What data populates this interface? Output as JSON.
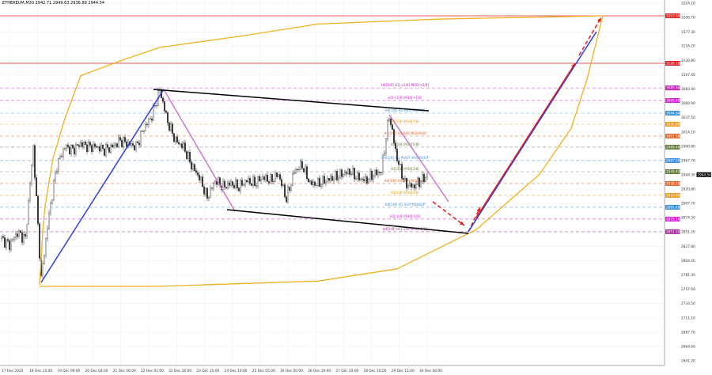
{
  "chart_data": {
    "type": "candlestick",
    "title": "ETHEREUM,M30  2942.71 2949.63 2936.89 2944.54",
    "symbol_line": {
      "symbol": "ETHEREUM,M30",
      "open": "2942.71",
      "high": "2949.63",
      "low": "2936.89",
      "close": "2944.54"
    },
    "ylim": [
      2641.2,
      3224.1
    ],
    "grid": true,
    "y_ticks": [
      "3224.10",
      "3200.70",
      "3177.30",
      "3154.20",
      "3130.80",
      "3107.40",
      "3083.90",
      "3060.90",
      "3037.50",
      "3014.10",
      "2990.80",
      "2967.70",
      "2944.30",
      "2920.80",
      "2897.70",
      "2874.30",
      "2851.20",
      "2827.80",
      "2804.40",
      "2781.30",
      "2757.60",
      "2734.50",
      "2711.10",
      "2687.70",
      "2664.60",
      "2641.20"
    ],
    "x_ticks": [
      "17 Dec 2025",
      "18 Dec 14:00",
      "19 Dec 09:00",
      "20 Dec 04:00",
      "21 Dec 06:00",
      "22 Dec 01:00",
      "22 Dec 20:00",
      "23 Dec 15:00",
      "24 Dec 10:00",
      "25 Dec 05:00",
      "26 Dec 00:00",
      "26 Dec 19:00",
      "27 Dec 20:00",
      "28 Dec 16:00",
      "29 Dec 11:00",
      "30 Dec 06:00"
    ],
    "price_samples": [
      2840,
      2830,
      2850,
      2840,
      2990,
      2775,
      2880,
      2960,
      2990,
      2985,
      2995,
      2990,
      2990,
      2985,
      2990,
      3000,
      2995,
      2990,
      3020,
      3040,
      3083,
      3030,
      3000,
      2990,
      2960,
      2940,
      2907,
      2935,
      2925,
      2930,
      2925,
      2935,
      2930,
      2940,
      2935,
      2945,
      2905,
      2950,
      2960,
      2930,
      2930,
      2935,
      2940,
      2945,
      2950,
      2940,
      2935,
      2945,
      2950,
      3042,
      2970,
      2930,
      2925,
      2935,
      2944.54
    ],
    "current_price": "2944.54",
    "levels": [
      {
        "price": "3085.94",
        "label": "H4[8/8] H1[+2/8] M30[+2/8]",
        "color": "#c21fb5"
      },
      {
        "price": "3065.40",
        "label": "H1[+1/8] M30[+1/8]",
        "color": "#d61fd6"
      },
      {
        "price": "3044.84",
        "label": "H4[7/8] H1 RES M30RES",
        "color": "#3a8fe0"
      },
      {
        "price": "3026.80",
        "label": "H1[7/8] M30[7/8]",
        "color": "#e89a1c"
      },
      {
        "price": "3007.50",
        "label": "H4[6/8] H1[6/8] M30[6/8]",
        "color": "#e2652a"
      },
      {
        "price": "2989.40",
        "label": "H1[5/8] M30[5/8]",
        "color": "#5f7a3a"
      },
      {
        "price": "2967.50",
        "label": "H4[5/8] H1 PIVOT M30PIVOT",
        "color": "#3a8fe0"
      },
      {
        "price": "2949.40",
        "label": "H1[3/8] M30[3/8]",
        "color": "#5f7a3a"
      },
      {
        "price": "2930.10",
        "label": "H4[3/8] H1[2/8] M30[2/8]",
        "color": "#e2652a"
      },
      {
        "price": "2910.80",
        "label": "H1[1/8] M30[1/8]",
        "color": "#e89a1c"
      },
      {
        "price": "2891.40",
        "label": "H4[2/8] H1 SUP M30SUP",
        "color": "#3a8fe0"
      },
      {
        "price": "2872.10",
        "label": "H1[-1/8] M30[-1/8]",
        "color": "#d61fd6"
      },
      {
        "price": "2851.50",
        "label": "H4[1/8] H1[-2/8] M30[-2/8]",
        "color": "#a0309a"
      }
    ],
    "red_lines": [
      {
        "price": "3203.50",
        "color": "#e02020"
      },
      {
        "price": "3126.10",
        "color": "#e02020"
      }
    ],
    "drawings": [
      {
        "kind": "trend",
        "color": "#2b3fe0",
        "points": [
          [
            5.0,
            2768.9
          ],
          [
            20.5,
            3083.5
          ]
        ]
      },
      {
        "kind": "trend",
        "color": "#c77ad0",
        "points": [
          [
            20.5,
            3083.5
          ],
          [
            29.5,
            2885
          ]
        ]
      },
      {
        "kind": "trend",
        "color": "#000000",
        "points": [
          [
            19.2,
            3083.5
          ],
          [
            54,
            3048.7
          ]
        ]
      },
      {
        "kind": "trend",
        "color": "#000000",
        "points": [
          [
            28.5,
            2887.5
          ],
          [
            59,
            2848.9
          ]
        ]
      },
      {
        "kind": "trend",
        "color": "#c77ad0",
        "points": [
          [
            49,
            3042.3
          ],
          [
            56.5,
            2900.4
          ]
        ]
      },
      {
        "kind": "arrow",
        "color": "#e02020",
        "points": [
          [
            54.5,
            2900.4
          ],
          [
            58.5,
            2861.8
          ]
        ],
        "dashed": true
      },
      {
        "kind": "arrow",
        "color": "#e02020",
        "points": [
          [
            59,
            2851.5
          ],
          [
            60.5,
            2891.4
          ]
        ],
        "dashed": true
      },
      {
        "kind": "trend",
        "color": "#2b3fe0",
        "points": [
          [
            59,
            2851.5
          ],
          [
            75.2,
            3177.7
          ]
        ]
      },
      {
        "kind": "arrow",
        "color": "#e02020",
        "points": [
          [
            60,
            2874.7
          ],
          [
            72.5,
            3126.1
          ]
        ],
        "dashed": false
      },
      {
        "kind": "arrow",
        "color": "#e02020",
        "points": [
          [
            73,
            3139
          ],
          [
            75.8,
            3200.9
          ]
        ],
        "dashed": true
      }
    ],
    "arc_upper": [
      [
        4.8,
        2765
      ],
      [
        5.2,
        2850
      ],
      [
        5.5,
        2894
      ],
      [
        6.5,
        2971
      ],
      [
        8,
        3036
      ],
      [
        10,
        3106
      ],
      [
        15,
        3130
      ],
      [
        20,
        3152
      ],
      [
        30,
        3170
      ],
      [
        40,
        3190
      ],
      [
        55,
        3198
      ],
      [
        76,
        3203.5
      ]
    ],
    "arc_lower": [
      [
        4.8,
        2762.5
      ],
      [
        20,
        2762.5
      ],
      [
        40,
        2771
      ],
      [
        50,
        2791
      ],
      [
        60,
        2855
      ],
      [
        68,
        2945
      ],
      [
        72,
        3020
      ],
      [
        74,
        3100
      ],
      [
        76,
        3203.5
      ]
    ]
  }
}
